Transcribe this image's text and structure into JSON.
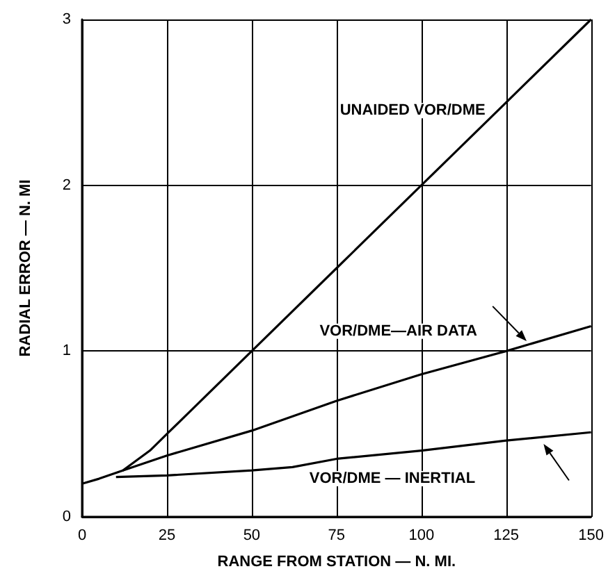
{
  "chart_data": {
    "type": "line",
    "xlabel": "RANGE FROM STATION — N. MI.",
    "ylabel": "RADIAL ERROR — N. MI",
    "xlim": [
      0,
      150
    ],
    "xticks": [
      0,
      25,
      50,
      75,
      100,
      125,
      150
    ],
    "ylim": [
      0,
      3
    ],
    "yticks": [
      0,
      1,
      2,
      3
    ],
    "grid": true,
    "legend": false,
    "marker": "none",
    "line_style": "solid",
    "series": [
      {
        "name": "UNAIDED VOR/DME",
        "color": "#000000",
        "x": [
          0,
          5,
          12,
          20,
          25,
          50,
          75,
          100,
          125,
          150
        ],
        "values": [
          0.2,
          0.23,
          0.28,
          0.4,
          0.5,
          1.0,
          1.5,
          2.0,
          2.5,
          3.0
        ]
      },
      {
        "name": "VOR/DME—AIR DATA",
        "color": "#000000",
        "x": [
          12,
          25,
          50,
          75,
          100,
          125,
          150
        ],
        "values": [
          0.28,
          0.37,
          0.52,
          0.7,
          0.86,
          1.0,
          1.15
        ]
      },
      {
        "name": "VOR/DME — INERTIAL",
        "color": "#000000",
        "x": [
          10,
          25,
          50,
          62,
          75,
          100,
          125,
          150
        ],
        "values": [
          0.24,
          0.25,
          0.28,
          0.3,
          0.35,
          0.4,
          0.46,
          0.51
        ]
      }
    ]
  }
}
